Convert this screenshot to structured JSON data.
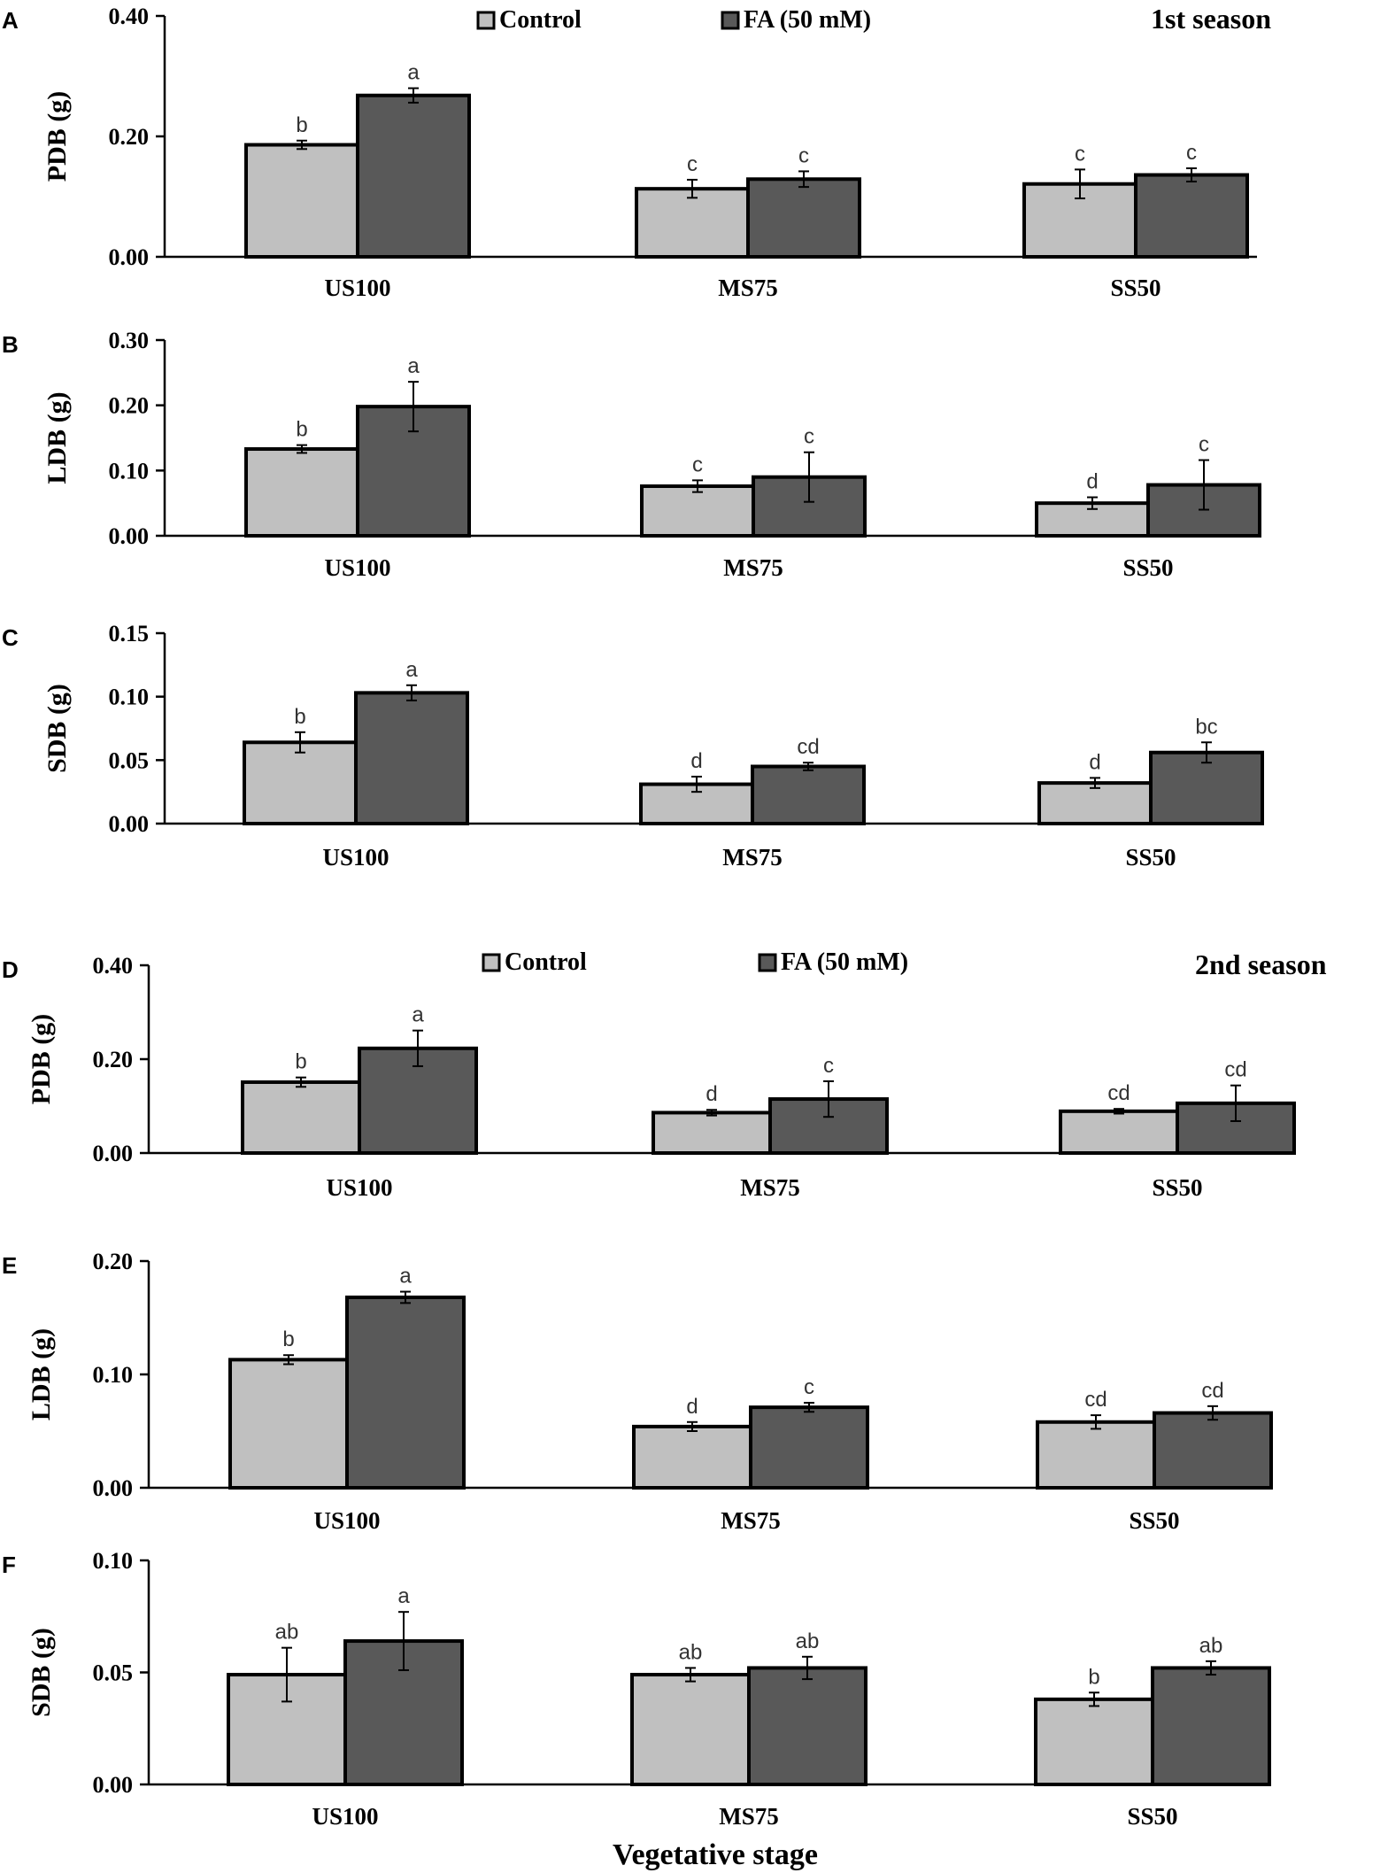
{
  "figure": {
    "xlabel": "Vegetative stage",
    "season_labels": [
      "1st season",
      "2nd season"
    ]
  },
  "colors": {
    "control": "#c0c0c0",
    "fa": "#595959",
    "axis": "#000000"
  },
  "chart_data": [
    {
      "panel": "A",
      "type": "bar",
      "season": "1st season",
      "ylabel": "PDB (g)",
      "ylim": [
        0,
        0.4
      ],
      "yticks": [
        "0.00",
        "0.20",
        "0.40"
      ],
      "categories": [
        "US100",
        "MS75",
        "SS50"
      ],
      "legend": [
        "Control",
        "FA (50 mM)"
      ],
      "series": [
        {
          "name": "Control",
          "values": [
            0.186,
            0.113,
            0.121
          ],
          "errors": [
            0.007,
            0.015,
            0.024
          ],
          "letters": [
            "b",
            "c",
            "c"
          ]
        },
        {
          "name": "FA (50 mM)",
          "values": [
            0.268,
            0.129,
            0.136
          ],
          "errors": [
            0.012,
            0.013,
            0.011
          ],
          "letters": [
            "a",
            "c",
            "c"
          ]
        }
      ]
    },
    {
      "panel": "B",
      "type": "bar",
      "ylabel": "LDB (g)",
      "ylim": [
        0,
        0.3
      ],
      "yticks": [
        "0.00",
        "0.10",
        "0.20",
        "0.30"
      ],
      "categories": [
        "US100",
        "MS75",
        "SS50"
      ],
      "series": [
        {
          "name": "Control",
          "values": [
            0.133,
            0.076,
            0.05
          ],
          "errors": [
            0.006,
            0.009,
            0.009
          ],
          "letters": [
            "b",
            "c",
            "d"
          ]
        },
        {
          "name": "FA (50 mM)",
          "values": [
            0.198,
            0.09,
            0.078
          ],
          "errors": [
            0.038,
            0.038,
            0.038
          ],
          "letters": [
            "a",
            "c",
            "c"
          ]
        }
      ]
    },
    {
      "panel": "C",
      "type": "bar",
      "ylabel": "SDB (g)",
      "ylim": [
        0,
        0.15
      ],
      "yticks": [
        "0.00",
        "0.05",
        "0.10",
        "0.15"
      ],
      "categories": [
        "US100",
        "MS75",
        "SS50"
      ],
      "series": [
        {
          "name": "Control",
          "values": [
            0.064,
            0.031,
            0.032
          ],
          "errors": [
            0.008,
            0.006,
            0.004
          ],
          "letters": [
            "b",
            "d",
            "d"
          ]
        },
        {
          "name": "FA (50 mM)",
          "values": [
            0.103,
            0.045,
            0.056
          ],
          "errors": [
            0.006,
            0.003,
            0.008
          ],
          "letters": [
            "a",
            "cd",
            "bc"
          ]
        }
      ]
    },
    {
      "panel": "D",
      "type": "bar",
      "season": "2nd season",
      "ylabel": "PDB (g)",
      "ylim": [
        0,
        0.4
      ],
      "yticks": [
        "0.00",
        "0.20",
        "0.40"
      ],
      "categories": [
        "US100",
        "MS75",
        "SS50"
      ],
      "legend": [
        "Control",
        "FA (50 mM)"
      ],
      "series": [
        {
          "name": "Control",
          "values": [
            0.151,
            0.086,
            0.089
          ],
          "errors": [
            0.01,
            0.006,
            0.005
          ],
          "letters": [
            "b",
            "d",
            "cd"
          ]
        },
        {
          "name": "FA (50 mM)",
          "values": [
            0.223,
            0.115,
            0.106
          ],
          "errors": [
            0.038,
            0.038,
            0.038
          ],
          "letters": [
            "a",
            "c",
            "cd"
          ]
        }
      ]
    },
    {
      "panel": "E",
      "type": "bar",
      "ylabel": "LDB (g)",
      "ylim": [
        0,
        0.2
      ],
      "yticks": [
        "0.00",
        "0.10",
        "0.20"
      ],
      "categories": [
        "US100",
        "MS75",
        "SS50"
      ],
      "series": [
        {
          "name": "Control",
          "values": [
            0.113,
            0.054,
            0.058
          ],
          "errors": [
            0.004,
            0.004,
            0.006
          ],
          "letters": [
            "b",
            "d",
            "cd"
          ]
        },
        {
          "name": "FA (50 mM)",
          "values": [
            0.168,
            0.071,
            0.066
          ],
          "errors": [
            0.005,
            0.004,
            0.006
          ],
          "letters": [
            "a",
            "c",
            "cd"
          ]
        }
      ]
    },
    {
      "panel": "F",
      "type": "bar",
      "ylabel": "SDB (g)",
      "ylim": [
        0,
        0.1
      ],
      "yticks": [
        "0.00",
        "0.05",
        "0.10"
      ],
      "categories": [
        "US100",
        "MS75",
        "SS50"
      ],
      "series": [
        {
          "name": "Control",
          "values": [
            0.049,
            0.049,
            0.038
          ],
          "errors": [
            0.012,
            0.003,
            0.003
          ],
          "letters": [
            "ab",
            "ab",
            "b"
          ]
        },
        {
          "name": "FA (50 mM)",
          "values": [
            0.064,
            0.052,
            0.052
          ],
          "errors": [
            0.013,
            0.005,
            0.003
          ],
          "letters": [
            "a",
            "ab",
            "ab"
          ]
        }
      ]
    }
  ]
}
